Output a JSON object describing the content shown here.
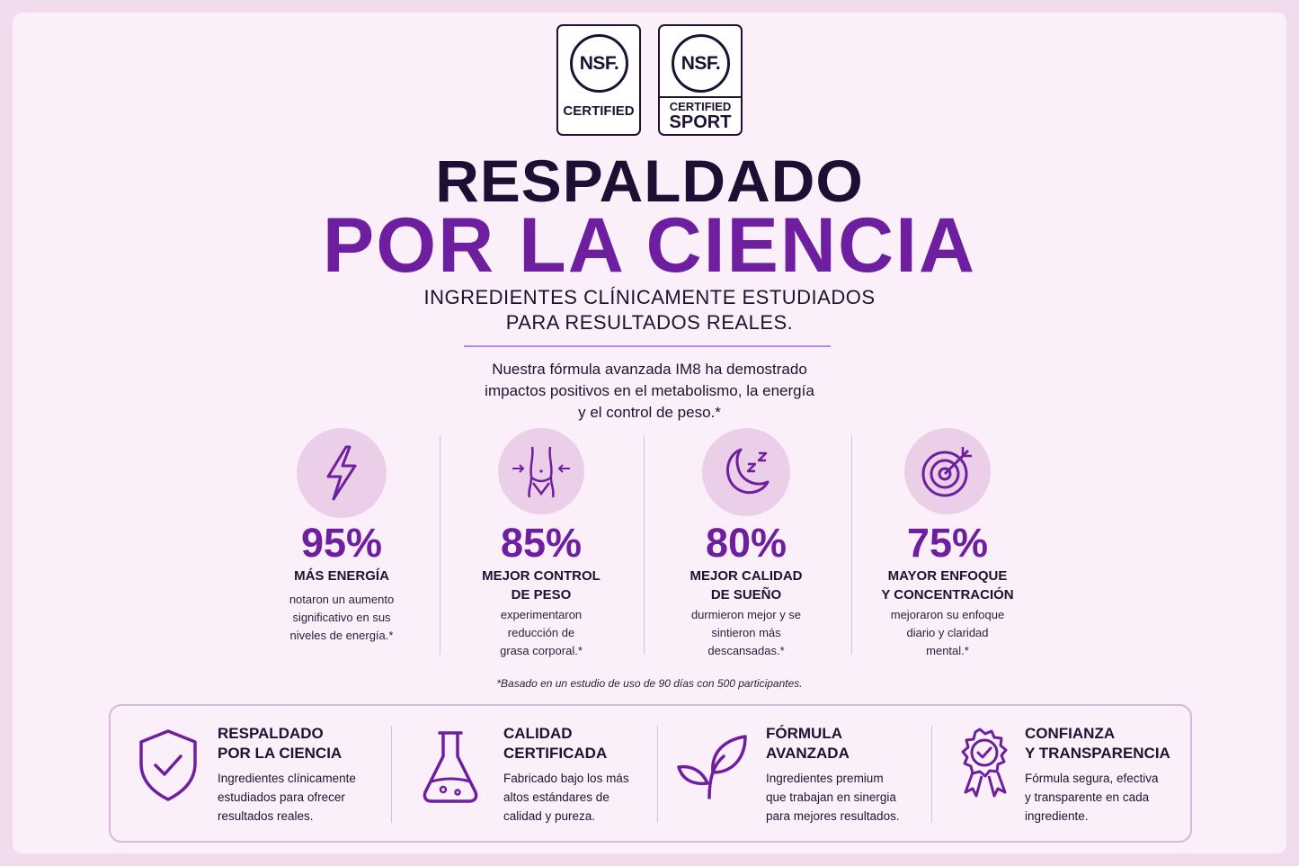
{
  "badges": {
    "nsf_logo": "NSF.",
    "certified_label": "CERTIFIED",
    "sport_top": "CERTIFIED",
    "sport_bottom": "SPORT"
  },
  "header": {
    "title_line1": "RESPALDADO",
    "title_line2": "POR LA CIENCIA",
    "subtitle_line1": "INGREDIENTES CLÍNICAMENTE ESTUDIADOS",
    "subtitle_line2": "PARA RESULTADOS REALES.",
    "intro_line1": "Nuestra fórmula avanzada IM8 ha demostrado",
    "intro_line2": "impactos positivos en el metabolismo, la energía",
    "intro_line3": "y el control de peso.*"
  },
  "stats": [
    {
      "icon": "lightning-icon",
      "value": "95%",
      "label_1": "MÁS ENERGÍA",
      "label_2": "",
      "desc_1": "notaron un aumento",
      "desc_2": "significativo en sus",
      "desc_3": "niveles de energía.*"
    },
    {
      "icon": "waist-icon",
      "value": "85%",
      "label_1": "MEJOR CONTROL",
      "label_2": "DE PESO",
      "desc_1": "experimentaron",
      "desc_2": "reducción de",
      "desc_3": "grasa corporal.*"
    },
    {
      "icon": "moon-icon",
      "value": "80%",
      "label_1": "MEJOR CALIDAD",
      "label_2": "DE SUEÑO",
      "desc_1": "durmieron mejor y se",
      "desc_2": "sintieron más",
      "desc_3": "descansadas.*"
    },
    {
      "icon": "target-icon",
      "value": "75%",
      "label_1": "MAYOR ENFOQUE",
      "label_2": "Y CONCENTRACIÓN",
      "desc_1": "mejoraron su enfoque",
      "desc_2": "diario y claridad",
      "desc_3": "mental.*"
    }
  ],
  "footnote": "*Basado en un estudio de uso de 90 días con 500 participantes.",
  "features": [
    {
      "icon": "shield-check-icon",
      "title_1": "RESPALDADO",
      "title_2": "POR LA CIENCIA",
      "desc_1": "Ingredientes clínicamente",
      "desc_2": "estudiados para ofrecer",
      "desc_3": "resultados reales."
    },
    {
      "icon": "flask-icon",
      "title_1": "CALIDAD",
      "title_2": "CERTIFICADA",
      "desc_1": "Fabricado bajo los más",
      "desc_2": "altos estándares de",
      "desc_3": "calidad y pureza."
    },
    {
      "icon": "leaf-icon",
      "title_1": "FÓRMULA",
      "title_2": "AVANZADA",
      "desc_1": "Ingredientes premium",
      "desc_2": "que trabajan en sinergia",
      "desc_3": "para mejores resultados."
    },
    {
      "icon": "award-ribbon-icon",
      "title_1": "CONFIANZA",
      "title_2": "Y TRANSPARENCIA",
      "desc_1": "Fórmula segura, efectiva",
      "desc_2": "y transparente en cada",
      "desc_3": "ingrediente."
    }
  ],
  "colors": {
    "accent": "#6e1f9f",
    "dark": "#1e1233",
    "background": "#fbf0f9",
    "icon_circle": "#ebcfe8"
  }
}
